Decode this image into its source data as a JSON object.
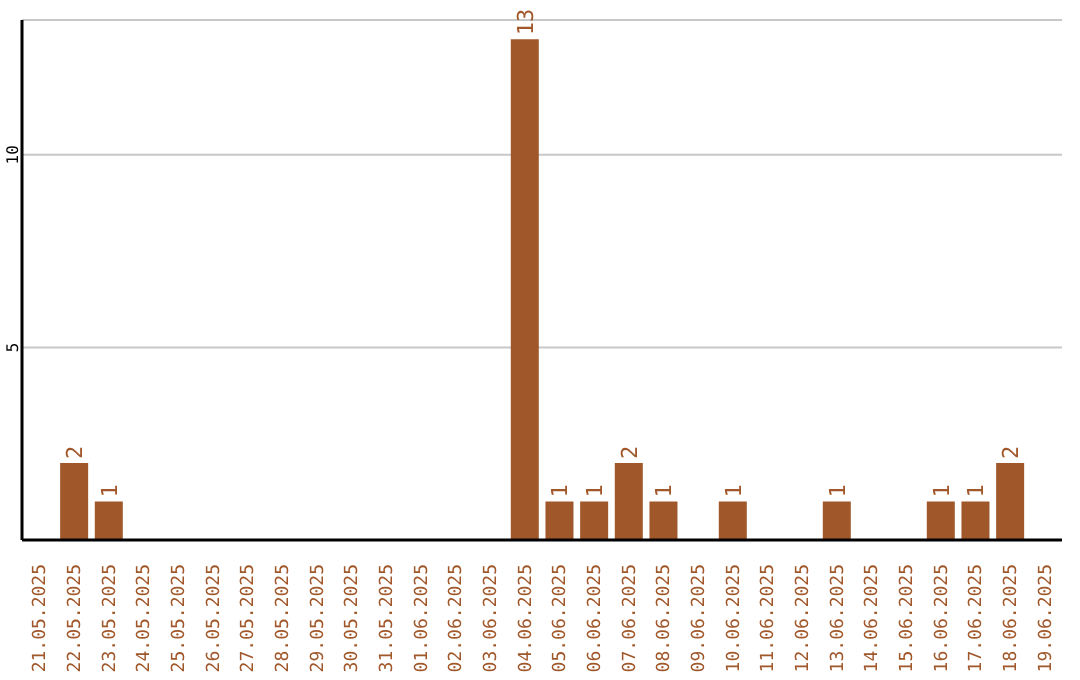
{
  "chart_data": {
    "type": "bar",
    "categories": [
      "21.05.2025",
      "22.05.2025",
      "23.05.2025",
      "24.05.2025",
      "25.05.2025",
      "26.05.2025",
      "27.05.2025",
      "28.05.2025",
      "29.05.2025",
      "30.05.2025",
      "31.05.2025",
      "01.06.2025",
      "02.06.2025",
      "03.06.2025",
      "04.06.2025",
      "05.06.2025",
      "06.06.2025",
      "07.06.2025",
      "08.06.2025",
      "09.06.2025",
      "10.06.2025",
      "11.06.2025",
      "12.06.2025",
      "13.06.2025",
      "14.06.2025",
      "15.06.2025",
      "16.06.2025",
      "17.06.2025",
      "18.06.2025",
      "19.06.2025"
    ],
    "values": [
      0,
      2,
      1,
      0,
      0,
      0,
      0,
      0,
      0,
      0,
      0,
      0,
      0,
      0,
      13,
      1,
      1,
      2,
      1,
      0,
      1,
      0,
      0,
      1,
      0,
      0,
      1,
      1,
      2,
      0
    ],
    "value_labels": [
      null,
      "2",
      "1",
      null,
      null,
      null,
      null,
      null,
      null,
      null,
      null,
      null,
      null,
      null,
      "13",
      "1",
      "1",
      "2",
      "1",
      null,
      "1",
      null,
      null,
      "1",
      null,
      null,
      "1",
      "1",
      "2",
      null
    ],
    "color": "#a0572a",
    "ylim": [
      0,
      13.5
    ],
    "yticks": [
      5,
      10
    ],
    "grid": "y"
  }
}
